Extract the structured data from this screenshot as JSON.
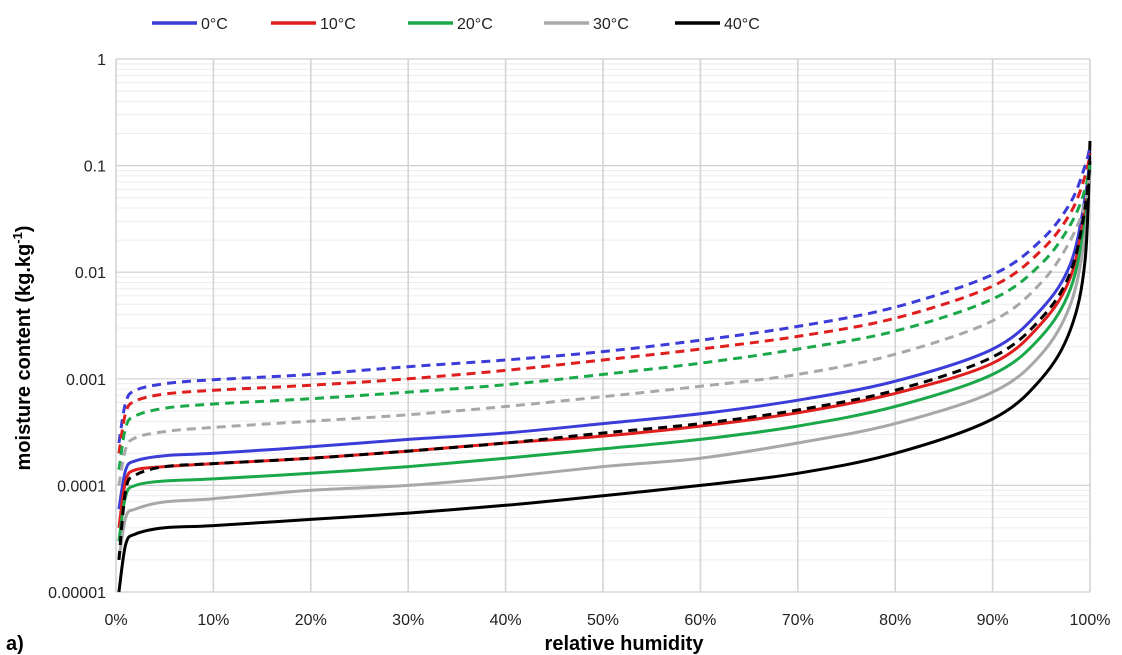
{
  "chart_data": {
    "type": "line",
    "panel_label": "a)",
    "xlabel": "relative humidity",
    "ylabel": "moisture content (kg.kg",
    "ylabel_sup": "-1",
    "ylabel_close": ")",
    "y_scale": "log",
    "ylim": [
      1e-05,
      1
    ],
    "xlim": [
      0,
      100
    ],
    "x_ticks": [
      "0%",
      "10%",
      "20%",
      "30%",
      "40%",
      "50%",
      "60%",
      "70%",
      "80%",
      "90%",
      "100%"
    ],
    "y_ticks": [
      "0.00001",
      "0.0001",
      "0.001",
      "0.01",
      "0.1",
      "1"
    ],
    "grid": true,
    "legend_position": "top",
    "x": [
      0.3,
      1,
      2,
      5,
      10,
      20,
      30,
      40,
      50,
      60,
      70,
      80,
      90,
      95,
      98,
      99.5,
      100
    ],
    "series": [
      {
        "name": "0°C",
        "color": "#3c3cd8",
        "dash": false,
        "values": [
          6e-05,
          0.00014,
          0.00017,
          0.00019,
          0.0002,
          0.00023,
          0.00027,
          0.00031,
          0.00038,
          0.00047,
          0.00063,
          0.00095,
          0.0019,
          0.0045,
          0.012,
          0.05,
          0.12
        ]
      },
      {
        "name": "",
        "color": "#3c3cd8",
        "dash": true,
        "values": [
          0.00025,
          0.0006,
          0.00078,
          0.0009,
          0.00098,
          0.0011,
          0.0013,
          0.0015,
          0.0018,
          0.0023,
          0.0031,
          0.0047,
          0.0095,
          0.02,
          0.045,
          0.1,
          0.15
        ]
      },
      {
        "name": "10°C",
        "color": "#e01e1e",
        "dash": false,
        "values": [
          4e-05,
          0.00011,
          0.00014,
          0.00015,
          0.00016,
          0.00018,
          0.00021,
          0.00025,
          0.00029,
          0.00036,
          0.00048,
          0.00073,
          0.0014,
          0.0033,
          0.009,
          0.04,
          0.11
        ]
      },
      {
        "name": "",
        "color": "#e01e1e",
        "dash": true,
        "values": [
          0.0002,
          0.00048,
          0.00062,
          0.00072,
          0.00078,
          0.00087,
          0.001,
          0.0012,
          0.0015,
          0.0019,
          0.0025,
          0.0037,
          0.0074,
          0.016,
          0.036,
          0.08,
          0.13
        ]
      },
      {
        "name": "20°C",
        "color": "#1aa84a",
        "dash": false,
        "values": [
          3e-05,
          8e-05,
          0.0001,
          0.00011,
          0.000115,
          0.00013,
          0.00015,
          0.00018,
          0.00022,
          0.00027,
          0.00036,
          0.00055,
          0.0011,
          0.0025,
          0.007,
          0.03,
          0.1
        ]
      },
      {
        "name": "",
        "color": "#1aa84a",
        "dash": true,
        "values": [
          0.00014,
          0.00035,
          0.00045,
          0.00053,
          0.00058,
          0.00065,
          0.00075,
          0.00088,
          0.0011,
          0.0014,
          0.0019,
          0.0028,
          0.0056,
          0.012,
          0.028,
          0.06,
          0.11
        ]
      },
      {
        "name": "30°C",
        "color": "#a8a8a8",
        "dash": false,
        "values": [
          2e-05,
          5e-05,
          6e-05,
          7e-05,
          7.5e-05,
          9e-05,
          0.0001,
          0.00012,
          0.00015,
          0.00018,
          0.00025,
          0.00038,
          0.00075,
          0.0017,
          0.005,
          0.022,
          0.09
        ]
      },
      {
        "name": "",
        "color": "#a8a8a8",
        "dash": true,
        "values": [
          0.0001,
          0.00022,
          0.00028,
          0.00032,
          0.00035,
          0.0004,
          0.00046,
          0.00055,
          0.00068,
          0.00085,
          0.0011,
          0.0017,
          0.0035,
          0.008,
          0.02,
          0.045,
          0.09
        ]
      },
      {
        "name": "40°C",
        "color": "#000000",
        "dash": false,
        "values": [
          1e-05,
          2.8e-05,
          3.5e-05,
          4e-05,
          4.2e-05,
          4.8e-05,
          5.5e-05,
          6.5e-05,
          8e-05,
          0.0001,
          0.00013,
          0.0002,
          0.00042,
          0.001,
          0.0029,
          0.013,
          0.17
        ]
      },
      {
        "name": "",
        "color": "#000000",
        "dash": true,
        "values": [
          2e-05,
          9e-05,
          0.000125,
          0.00015,
          0.00016,
          0.00018,
          0.00021,
          0.00025,
          0.00031,
          0.00038,
          0.00051,
          0.00078,
          0.0016,
          0.0037,
          0.01,
          0.04,
          0.11
        ]
      }
    ]
  }
}
